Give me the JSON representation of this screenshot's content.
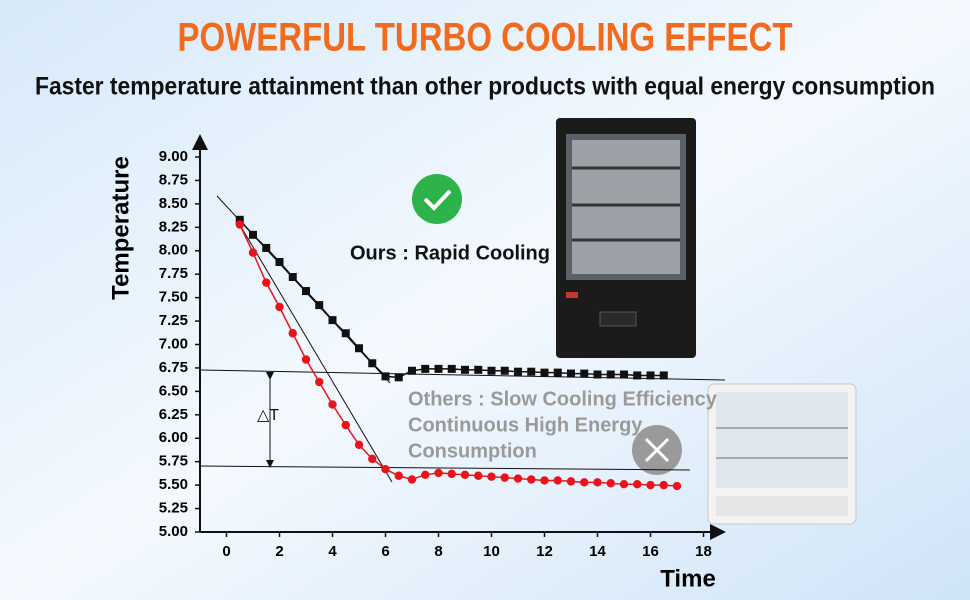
{
  "chart_data": {
    "type": "line",
    "title": "POWERFUL TURBO COOLING EFFECT",
    "subtitle": "Faster temperature attainment than other products with equal energy consumption",
    "x_label": "Time",
    "y_label": "Temperature",
    "annotations": [
      "Ours : Rapid Cooling",
      "Others : Slow Cooling Efficiency",
      "Continuous High Energy",
      "Consumption",
      "△T"
    ],
    "xlim": [
      -1,
      18
    ],
    "xticks": [
      0,
      2,
      4,
      6,
      8,
      10,
      12,
      14,
      16,
      18
    ],
    "ylim": [
      5,
      9
    ],
    "yticks": [
      {
        "value": 5,
        "label": "5.00"
      },
      {
        "value": 5.25,
        "label": "5.25"
      },
      {
        "value": 5.5,
        "label": "5.50"
      },
      {
        "value": 5.75,
        "label": "5.75"
      },
      {
        "value": 6,
        "label": "6.00"
      },
      {
        "value": 6.25,
        "label": "6.25"
      },
      {
        "value": 6.5,
        "label": "6.50"
      },
      {
        "value": 6.75,
        "label": "6.75"
      },
      {
        "value": 7,
        "label": "7.00"
      },
      {
        "value": 7.25,
        "label": "7.25"
      },
      {
        "value": 7.5,
        "label": "7.50"
      },
      {
        "value": 7.75,
        "label": "7.75"
      },
      {
        "value": 8,
        "label": "8.00"
      },
      {
        "value": 8.25,
        "label": "8.25"
      },
      {
        "value": 8.5,
        "label": "8.50"
      },
      {
        "value": 8.75,
        "label": "8.75"
      },
      {
        "value": 9,
        "label": "9.00"
      }
    ],
    "series": [
      {
        "color": "#111111",
        "marker": "square",
        "x": [
          0.5,
          1,
          1.5,
          2,
          2.5,
          3,
          3.5,
          4,
          4.5,
          5,
          5.5,
          6,
          6.5,
          7,
          7.5,
          8,
          8.5,
          9,
          9.5,
          10,
          10.5,
          11,
          11.5,
          12,
          12.5,
          13,
          13.5,
          14,
          14.5,
          15,
          15.5,
          16,
          16.5
        ],
        "values": [
          8.33,
          8.17,
          8.03,
          7.88,
          7.72,
          7.57,
          7.42,
          7.26,
          7.12,
          6.96,
          6.8,
          6.66,
          6.65,
          6.72,
          6.74,
          6.74,
          6.74,
          6.73,
          6.73,
          6.72,
          6.72,
          6.71,
          6.71,
          6.7,
          6.7,
          6.69,
          6.69,
          6.68,
          6.68,
          6.68,
          6.67,
          6.67,
          6.67
        ]
      },
      {
        "color": "#e8141b",
        "marker": "circle",
        "x": [
          0.5,
          1,
          1.5,
          2,
          2.5,
          3,
          3.5,
          4,
          4.5,
          5,
          5.5,
          6,
          6.5,
          7,
          7.5,
          8,
          8.5,
          9,
          9.5,
          10,
          10.5,
          11,
          11.5,
          12,
          12.5,
          13,
          13.5,
          14,
          14.5,
          15,
          15.5,
          16,
          16.5,
          17
        ],
        "values": [
          8.28,
          7.98,
          7.66,
          7.4,
          7.12,
          6.84,
          6.6,
          6.36,
          6.14,
          5.93,
          5.78,
          5.67,
          5.6,
          5.56,
          5.61,
          5.63,
          5.62,
          5.61,
          5.6,
          5.59,
          5.58,
          5.57,
          5.56,
          5.55,
          5.55,
          5.54,
          5.53,
          5.53,
          5.52,
          5.51,
          5.51,
          5.5,
          5.5,
          5.49
        ]
      }
    ]
  }
}
